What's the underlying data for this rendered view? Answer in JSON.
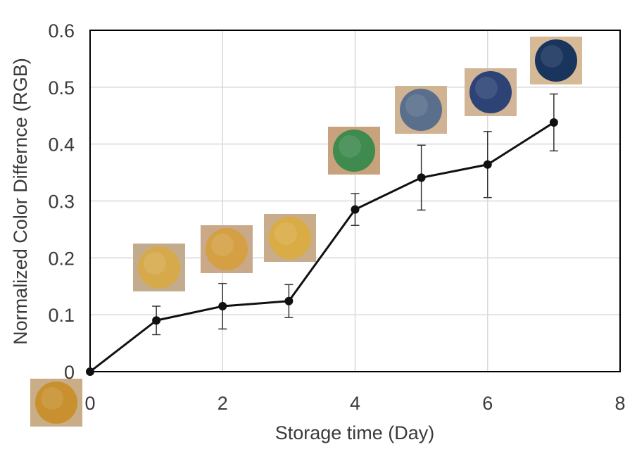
{
  "chart_data": {
    "type": "line",
    "title": "",
    "xlabel": "Storage time (Day)",
    "ylabel": "Normalized Color Differnce (RGB)",
    "xlim": [
      0,
      8
    ],
    "ylim": [
      0,
      0.6
    ],
    "x_ticks": [
      0,
      2,
      4,
      6,
      8
    ],
    "y_ticks": [
      0,
      0.1,
      0.2,
      0.3,
      0.4,
      0.5,
      0.6
    ],
    "x_tick_labels": [
      "0",
      "2",
      "4",
      "6",
      "8"
    ],
    "y_tick_labels": [
      "0",
      "0.1",
      "0.2",
      "0.3",
      "0.4",
      "0.5",
      "0.6"
    ],
    "grid": true,
    "legend": "none",
    "series": [
      {
        "name": "Normalized Color Difference",
        "x": [
          0,
          1,
          2,
          3,
          4,
          5,
          6,
          7
        ],
        "y": [
          0,
          0.09,
          0.115,
          0.124,
          0.285,
          0.341,
          0.364,
          0.438
        ],
        "error": [
          0,
          0.025,
          0.04,
          0.029,
          0.028,
          0.057,
          0.058,
          0.05
        ]
      }
    ],
    "sample_photos": [
      {
        "day": 0,
        "disc_color": "#c8902e",
        "bg_color": "#c9ad86"
      },
      {
        "day": 1,
        "disc_color": "#d6a94a",
        "bg_color": "#c3ac8e"
      },
      {
        "day": 2,
        "disc_color": "#d4a043",
        "bg_color": "#c9a98a"
      },
      {
        "day": 3,
        "disc_color": "#d9ac45",
        "bg_color": "#c9ac8a"
      },
      {
        "day": 4,
        "disc_color": "#3f8a4e",
        "bg_color": "#c8a27c"
      },
      {
        "day": 5,
        "disc_color": "#5a6f8c",
        "bg_color": "#d0b392"
      },
      {
        "day": 6,
        "disc_color": "#2d4375",
        "bg_color": "#d2b597"
      },
      {
        "day": 7,
        "disc_color": "#19345d",
        "bg_color": "#d6b996"
      }
    ],
    "colors": {
      "line": "#111111",
      "grid": "#d9d9d9",
      "axis": "#000000"
    }
  }
}
